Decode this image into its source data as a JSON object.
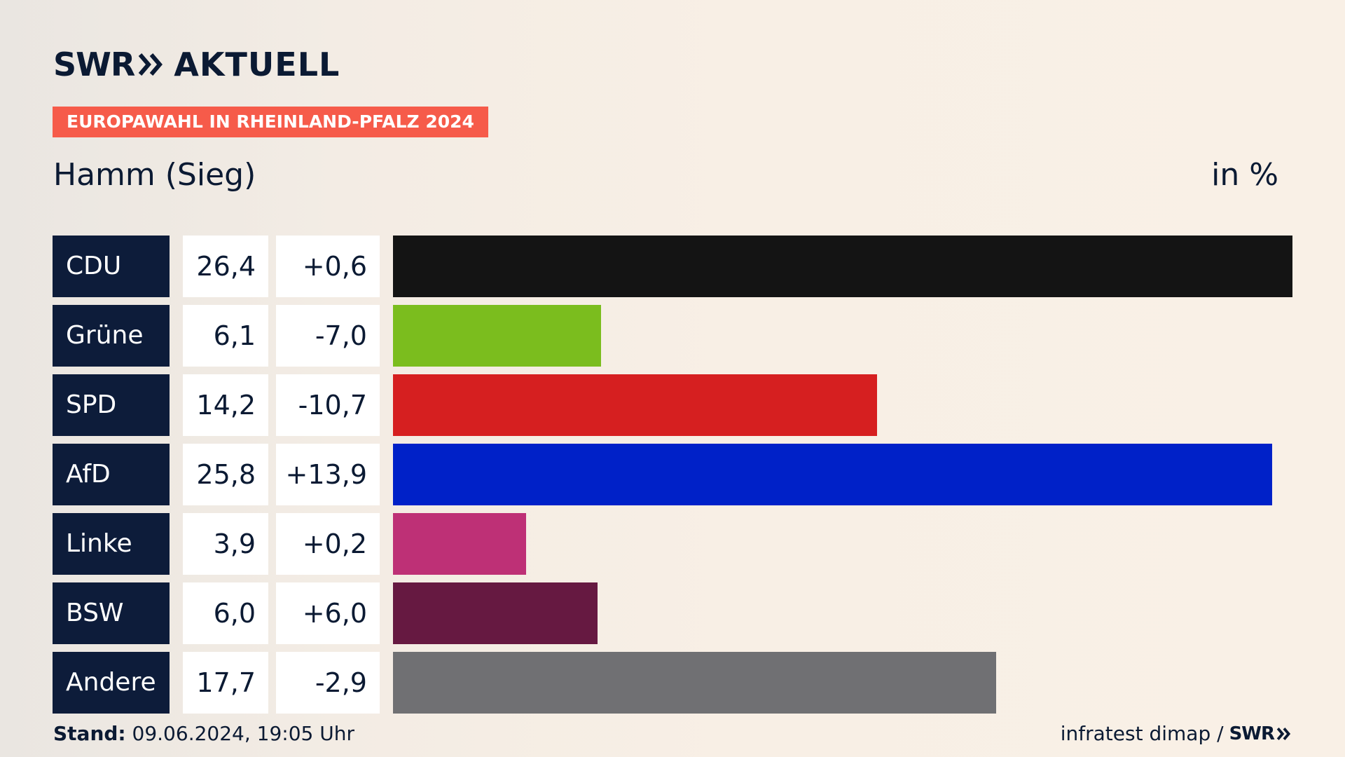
{
  "brand": {
    "logo_text": "SWR",
    "product": "AKTUELL",
    "color": "#0b1a33"
  },
  "header": {
    "badge": "EUROPAWAHL IN RHEINLAND-PFALZ 2024",
    "badge_color": "#f65b4a",
    "region": "Hamm (Sieg)",
    "unit": "in %"
  },
  "chart_data": {
    "type": "bar",
    "orientation": "horizontal",
    "xlim": [
      0,
      26.4
    ],
    "categories": [
      "CDU",
      "Grüne",
      "SPD",
      "AfD",
      "Linke",
      "BSW",
      "Andere"
    ],
    "values": [
      26.4,
      6.1,
      14.2,
      25.8,
      3.9,
      6.0,
      17.7
    ],
    "value_labels": [
      "26,4",
      "6,1",
      "14,2",
      "25,8",
      "3,9",
      "6,0",
      "17,7"
    ],
    "diff_labels": [
      "+0,6",
      "-7,0",
      "-10,7",
      "+13,9",
      "+0,2",
      "+6,0",
      "-2,9"
    ],
    "diffs": [
      0.6,
      -7.0,
      -10.7,
      13.9,
      0.2,
      6.0,
      -2.9
    ],
    "colors": [
      "#141414",
      "#7bbd1e",
      "#d61f20",
      "#0021c8",
      "#be3076",
      "#661941",
      "#707073"
    ]
  },
  "footer": {
    "stand_label": "Stand:",
    "stand_value": "09.06.2024, 19:05 Uhr",
    "source": "infratest dimap /",
    "source_logo": "SWR"
  }
}
